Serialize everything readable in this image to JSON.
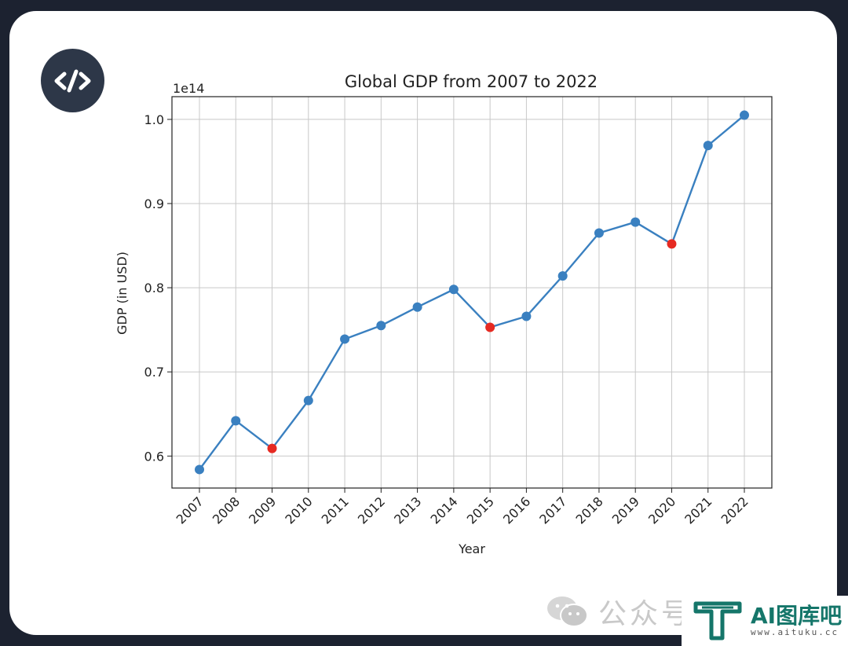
{
  "badge": {
    "icon": "code-icon"
  },
  "chart_data": {
    "type": "line",
    "title": "Global GDP from 2007 to 2022",
    "xlabel": "Year",
    "ylabel": "GDP (in USD)",
    "offset_label": "1e14",
    "categories": [
      "2007",
      "2008",
      "2009",
      "2010",
      "2011",
      "2012",
      "2013",
      "2014",
      "2015",
      "2016",
      "2017",
      "2018",
      "2019",
      "2020",
      "2021",
      "2022"
    ],
    "values": [
      0.584,
      0.642,
      0.609,
      0.666,
      0.739,
      0.755,
      0.777,
      0.798,
      0.753,
      0.766,
      0.814,
      0.865,
      0.878,
      0.852,
      0.969,
      1.005
    ],
    "highlight_indices": [
      2,
      8,
      13
    ],
    "yticks": [
      0.6,
      0.7,
      0.8,
      0.9,
      1.0
    ],
    "ylim": [
      0.562,
      1.027
    ],
    "grid": true,
    "colors": {
      "line": "#3a80c0",
      "marker": "#3a80c0",
      "highlight": "#e62a22"
    }
  },
  "watermark": {
    "text": "公众号 · 新智元"
  },
  "logo": {
    "text": "AI图库吧",
    "url": "www.aituku.cc"
  }
}
